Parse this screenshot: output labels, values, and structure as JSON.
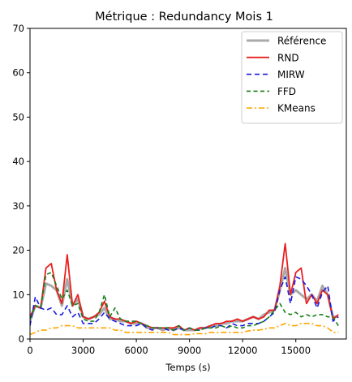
{
  "chart_data": {
    "type": "line",
    "title": "Métrique : Redundancy Mois 1",
    "xlabel": "Temps (s)",
    "ylabel": "",
    "xlim": [
      0,
      17850
    ],
    "ylim": [
      0,
      70
    ],
    "xticks": [
      0,
      3000,
      6000,
      9000,
      12000,
      15000
    ],
    "yticks": [
      0,
      10,
      20,
      30,
      40,
      50,
      60,
      70
    ],
    "grid": false,
    "legend_position": "top-right",
    "x": [
      0,
      300,
      600,
      900,
      1200,
      1500,
      1800,
      2100,
      2400,
      2700,
      3000,
      3300,
      3600,
      3900,
      4200,
      4500,
      4800,
      5100,
      5400,
      5700,
      6000,
      6300,
      6600,
      6900,
      7200,
      7500,
      7800,
      8100,
      8400,
      8700,
      9000,
      9300,
      9600,
      9900,
      10200,
      10500,
      10800,
      11100,
      11400,
      11700,
      12000,
      12300,
      12600,
      12900,
      13200,
      13500,
      13800,
      14100,
      14400,
      14700,
      15000,
      15300,
      15600,
      15900,
      16200,
      16500,
      16800,
      17100,
      17400
    ],
    "series": [
      {
        "name": "Référence",
        "color": "#aaaaaa",
        "dash": "solid",
        "width": 3,
        "values": [
          4,
          7.5,
          7,
          12.5,
          12,
          11,
          7.5,
          13.5,
          7.5,
          9,
          5,
          4.5,
          5,
          5.5,
          7,
          4.5,
          4.5,
          4,
          4,
          3.5,
          3.5,
          3.5,
          2.5,
          2.5,
          2.5,
          2,
          2.5,
          2,
          2.5,
          2,
          2,
          2,
          2.5,
          2.5,
          3,
          3,
          3.5,
          3.5,
          4,
          4,
          4,
          4.5,
          5,
          4.5,
          5.5,
          6,
          6.5,
          11,
          16,
          10,
          11,
          10,
          9,
          10,
          8.5,
          12,
          10,
          5,
          5
        ]
      },
      {
        "name": "RND",
        "color": "#e8201e",
        "dash": "solid",
        "width": 1.8,
        "values": [
          5,
          7.5,
          7,
          16,
          17,
          11,
          8,
          19,
          7.5,
          10,
          5,
          4.5,
          5,
          6,
          8.5,
          5,
          4.5,
          4.5,
          4,
          3.5,
          4,
          3.5,
          3,
          2.5,
          2.5,
          2.5,
          2.5,
          2.5,
          3,
          2,
          2.5,
          2,
          2.5,
          2.5,
          3,
          3.5,
          3.5,
          4,
          4,
          4.5,
          4,
          4.5,
          5,
          4.5,
          5,
          6.5,
          6.5,
          12,
          21.5,
          10,
          15,
          16,
          8,
          10,
          8,
          11,
          10,
          4.5,
          5.5
        ]
      },
      {
        "name": "MIRW",
        "color": "#1a1ae0",
        "dash": "6,4",
        "width": 1.6,
        "values": [
          3,
          9.5,
          7,
          6.5,
          7,
          5.5,
          5.5,
          7.5,
          5,
          6,
          3.5,
          3.5,
          3.5,
          4.5,
          6,
          4.5,
          4,
          3.5,
          3,
          3,
          3,
          3.5,
          2.5,
          2,
          2.5,
          2.5,
          2,
          2,
          2.5,
          2,
          2.5,
          2,
          2,
          2.5,
          2.5,
          3,
          3,
          2.5,
          3.5,
          3,
          3,
          3.5,
          3.5,
          3.5,
          4,
          5,
          6,
          11,
          14,
          8,
          14,
          13.5,
          12,
          10,
          7,
          10.5,
          12,
          4,
          5
        ]
      },
      {
        "name": "FFD",
        "color": "#167f16",
        "dash": "5,3.5",
        "width": 1.6,
        "values": [
          4.5,
          7.5,
          7,
          14.5,
          15,
          12,
          9,
          11,
          7.5,
          8,
          4.5,
          4,
          4,
          6,
          10,
          5,
          7,
          4.5,
          4,
          4,
          4,
          3.5,
          3,
          2.5,
          2.5,
          2.5,
          2.5,
          2,
          3,
          2,
          2.5,
          2,
          2,
          2.5,
          2.5,
          2.5,
          3,
          2.5,
          3,
          2.5,
          2.5,
          3,
          3,
          3.5,
          4,
          5,
          6.5,
          8,
          6,
          5.5,
          6,
          5,
          5.5,
          5,
          5.5,
          5.5,
          5,
          5,
          3
        ]
      },
      {
        "name": "KMeans",
        "color": "#ffa500",
        "dash": "7,3,2,3",
        "width": 1.6,
        "values": [
          1,
          1.5,
          2,
          2,
          2.5,
          2.5,
          3,
          3,
          3,
          2.5,
          2.5,
          2.5,
          2.5,
          2.5,
          2.5,
          2.5,
          2,
          2,
          1.5,
          1.5,
          1.5,
          1.5,
          1.5,
          1.5,
          1.5,
          1.5,
          1.5,
          1,
          1,
          1,
          1,
          1.2,
          1.2,
          1.2,
          1.5,
          1.5,
          1.5,
          1.5,
          1.5,
          1.5,
          1.5,
          1.8,
          2,
          2,
          2.2,
          2.5,
          2.5,
          3,
          3.5,
          3,
          3,
          3.5,
          3.5,
          3.5,
          3,
          3,
          2.5,
          1.5,
          1.5
        ]
      }
    ]
  }
}
